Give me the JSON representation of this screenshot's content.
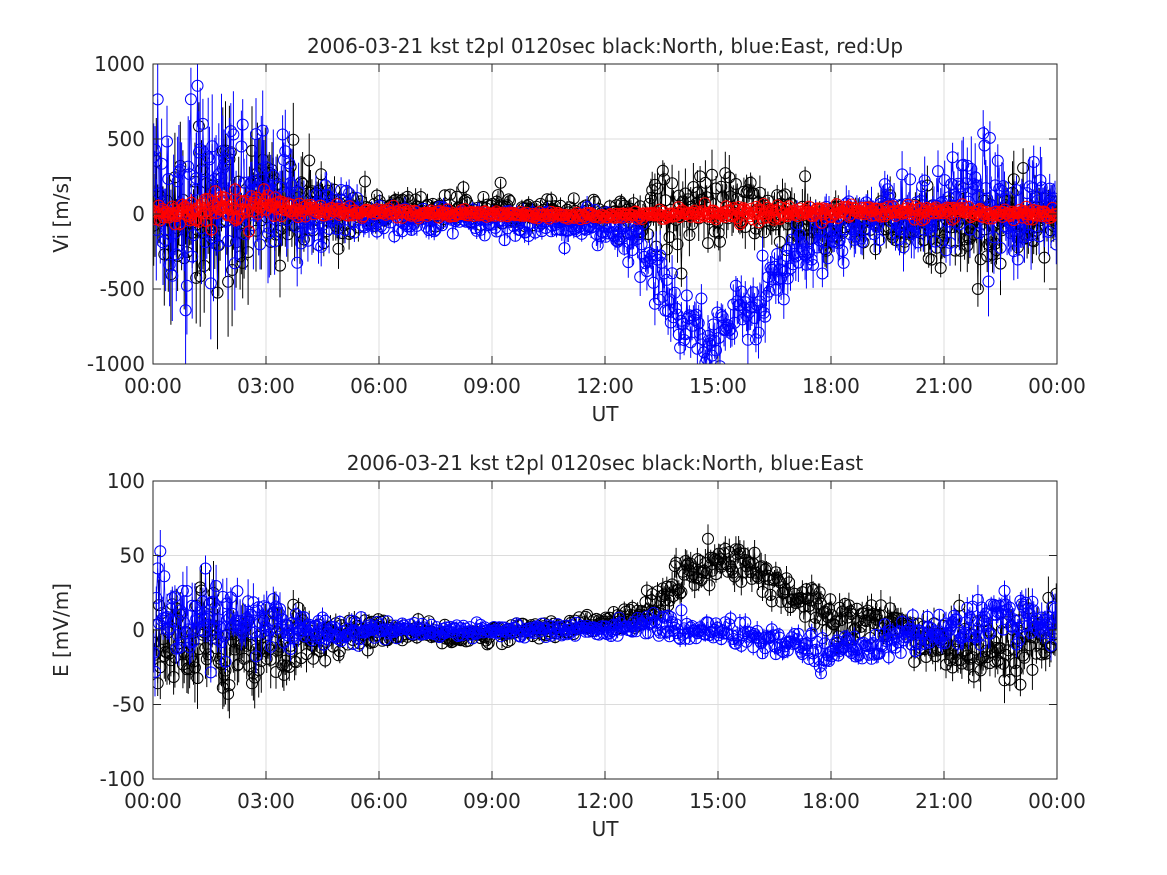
{
  "figure": {
    "background": "#ffffff"
  },
  "colors": {
    "north": "#000000",
    "east": "#0000ff",
    "up": "#ff0000",
    "grid": "#dcdcdc",
    "axis": "#262626"
  },
  "chart_data": [
    {
      "type": "scatter",
      "title": "2006-03-21 kst t2pl 0120sec black:North, blue:East, red:Up",
      "xlabel": "UT",
      "ylabel": "Vi [m/s]",
      "xlim": [
        0,
        24
      ],
      "ylim": [
        -1000,
        1000
      ],
      "xticks": [
        0,
        3,
        6,
        9,
        12,
        15,
        18,
        21,
        24
      ],
      "xtick_labels": [
        "00:00",
        "03:00",
        "06:00",
        "09:00",
        "12:00",
        "15:00",
        "18:00",
        "21:00",
        "00:00"
      ],
      "yticks": [
        -1000,
        -500,
        0,
        500,
        1000
      ],
      "ytick_labels": [
        "-1000",
        "-500",
        "0",
        "500",
        "1000"
      ],
      "grid": true,
      "marker": "open-circle-with-errorbar",
      "series_names_from_title": [
        "North",
        "East",
        "Up"
      ],
      "series_colors": [
        "#000000",
        "#0000ff",
        "#ff0000"
      ],
      "series_envelope": [
        {
          "x": [
            0,
            1,
            2,
            3,
            4,
            5,
            6,
            8,
            10,
            12,
            13,
            13.5,
            14,
            15,
            16,
            17,
            18,
            19,
            20,
            21,
            22,
            23,
            24
          ],
          "mean": [
            0,
            30,
            20,
            40,
            20,
            20,
            30,
            30,
            30,
            10,
            20,
            30,
            20,
            40,
            30,
            -50,
            -100,
            -50,
            -100,
            -80,
            -80,
            -50,
            0
          ],
          "spread": [
            500,
            550,
            550,
            500,
            300,
            200,
            120,
            100,
            90,
            80,
            150,
            250,
            250,
            250,
            200,
            200,
            180,
            180,
            200,
            250,
            300,
            300,
            250
          ]
        },
        {
          "x": [
            0,
            1,
            2,
            3,
            4,
            5,
            6,
            8,
            10,
            12,
            13,
            13.5,
            14,
            15,
            16,
            17,
            18,
            19,
            20,
            21,
            22,
            23,
            24
          ],
          "mean": [
            20,
            50,
            40,
            40,
            20,
            0,
            -20,
            -50,
            -50,
            -100,
            -250,
            -450,
            -700,
            -800,
            -600,
            -300,
            -100,
            -50,
            0,
            50,
            80,
            50,
            50
          ],
          "spread": [
            550,
            600,
            600,
            500,
            300,
            200,
            120,
            100,
            100,
            120,
            200,
            250,
            200,
            200,
            250,
            250,
            200,
            200,
            250,
            300,
            350,
            350,
            300
          ]
        },
        {
          "x": [
            0,
            1,
            2,
            3,
            4,
            6,
            9,
            12,
            15,
            16,
            18,
            21,
            24
          ],
          "mean": [
            0,
            20,
            40,
            60,
            20,
            10,
            0,
            -10,
            10,
            0,
            20,
            10,
            0
          ],
          "spread": [
            60,
            90,
            100,
            80,
            50,
            30,
            20,
            20,
            40,
            50,
            50,
            40,
            40
          ]
        }
      ]
    },
    {
      "type": "scatter",
      "title": "2006-03-21 kst t2pl 0120sec black:North, blue:East",
      "xlabel": "UT",
      "ylabel": "E [mV/m]",
      "xlim": [
        0,
        24
      ],
      "ylim": [
        -100,
        100
      ],
      "xticks": [
        0,
        3,
        6,
        9,
        12,
        15,
        18,
        21,
        24
      ],
      "xtick_labels": [
        "00:00",
        "03:00",
        "06:00",
        "09:00",
        "12:00",
        "15:00",
        "18:00",
        "21:00",
        "00:00"
      ],
      "yticks": [
        -100,
        -50,
        0,
        50,
        100
      ],
      "ytick_labels": [
        "-100",
        "-50",
        "0",
        "50",
        "100"
      ],
      "grid": true,
      "marker": "open-circle-with-errorbar",
      "series_names_from_title": [
        "North",
        "East"
      ],
      "series_colors": [
        "#000000",
        "#0000ff"
      ],
      "series_envelope": [
        {
          "x": [
            0,
            1,
            2,
            3,
            4,
            5,
            6,
            8,
            10,
            12,
            13,
            13.5,
            14,
            15,
            16,
            17,
            18,
            19,
            20,
            21,
            22,
            23,
            24
          ],
          "mean": [
            -10,
            -10,
            -10,
            -10,
            -5,
            -5,
            0,
            -5,
            0,
            5,
            10,
            20,
            35,
            45,
            40,
            25,
            10,
            5,
            0,
            -10,
            -15,
            -10,
            0
          ],
          "spread": [
            30,
            35,
            35,
            30,
            20,
            12,
            8,
            6,
            6,
            6,
            10,
            15,
            15,
            15,
            15,
            15,
            15,
            15,
            15,
            20,
            22,
            22,
            20
          ]
        },
        {
          "x": [
            0,
            1,
            2,
            3,
            4,
            5,
            6,
            8,
            10,
            12,
            13,
            14,
            15,
            16,
            17,
            18,
            19,
            20,
            21,
            22,
            23,
            24
          ],
          "mean": [
            5,
            5,
            5,
            5,
            0,
            0,
            0,
            0,
            0,
            0,
            5,
            0,
            0,
            -5,
            -10,
            -15,
            -10,
            -5,
            0,
            5,
            10,
            5
          ],
          "spread": [
            25,
            25,
            25,
            20,
            12,
            8,
            6,
            5,
            5,
            5,
            6,
            8,
            8,
            10,
            10,
            10,
            10,
            12,
            12,
            15,
            15,
            15
          ]
        }
      ]
    }
  ]
}
